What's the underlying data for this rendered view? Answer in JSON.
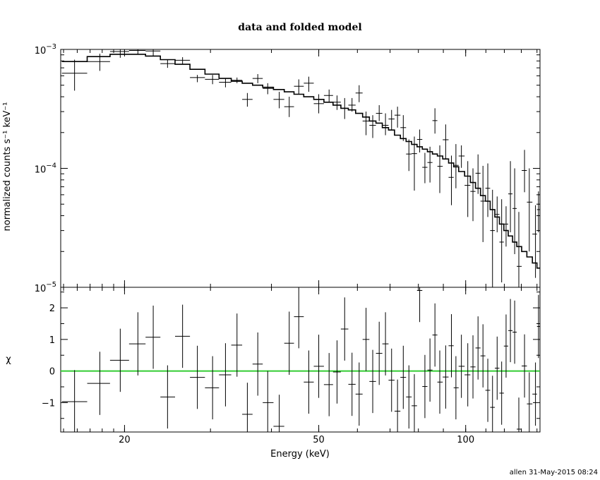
{
  "chart_data": {
    "title": "data and folded model",
    "footer": "allen  31-May-2015 08:24",
    "xlabel": "Energy (keV)",
    "x_scale": "log",
    "xlim": [
      14.8,
      142
    ],
    "x_ticks": [
      {
        "value": 20,
        "label": "20"
      },
      {
        "value": 50,
        "label": "50"
      },
      {
        "value": 100,
        "label": "100"
      }
    ],
    "panels": [
      {
        "id": "top",
        "type": "scatter",
        "ylabel": "normalized counts s⁻¹ keV⁻¹",
        "y_scale": "log",
        "ylim": [
          1e-05,
          0.001
        ],
        "y_ticks": [
          {
            "value": 0.001,
            "base": "10",
            "exp": "−3"
          },
          {
            "value": 0.0001,
            "base": "10",
            "exp": "−4"
          },
          {
            "value": 1e-05,
            "base": "10",
            "exp": "−5"
          }
        ],
        "data": {
          "name": "data",
          "points": [
            [
              15.8,
              0.00063,
              0.00082,
              0.00045
            ],
            [
              17.8,
              0.00079,
              0.00092,
              0.00066
            ],
            [
              19.6,
              0.00096,
              0.00102,
              0.00085
            ],
            [
              21.3,
              0.00098,
              0.00103,
              0.00091
            ],
            [
              22.9,
              0.00097,
              0.00102,
              0.00088
            ],
            [
              24.5,
              0.00076,
              0.00082,
              0.0007
            ],
            [
              26.3,
              0.00081,
              0.00086,
              0.00075
            ],
            [
              28.2,
              0.00058,
              0.00061,
              0.00053
            ],
            [
              30.3,
              0.00056,
              0.00061,
              0.00051
            ],
            [
              32.2,
              0.00053,
              0.00057,
              0.00048
            ],
            [
              34.0,
              0.00055,
              0.00058,
              0.00052
            ],
            [
              35.7,
              0.00038,
              0.00043,
              0.00033
            ],
            [
              37.5,
              0.00057,
              0.00062,
              0.00052
            ],
            [
              39.3,
              0.00047,
              0.00052,
              0.00042
            ],
            [
              41.5,
              0.00038,
              0.00044,
              0.00032
            ],
            [
              43.5,
              0.00033,
              0.0004,
              0.00027
            ],
            [
              45.5,
              0.00049,
              0.00056,
              0.00042
            ],
            [
              47.7,
              0.00052,
              0.00059,
              0.00044
            ],
            [
              50.0,
              0.00035,
              0.00042,
              0.00029
            ],
            [
              52.5,
              0.00041,
              0.00046,
              0.00036
            ],
            [
              54.5,
              0.00036,
              0.00041,
              0.00031
            ],
            [
              56.5,
              0.00032,
              0.00039,
              0.00026
            ],
            [
              58.5,
              0.00034,
              0.00039,
              0.0003
            ],
            [
              60.5,
              0.00043,
              0.0005,
              0.00036
            ],
            [
              62.5,
              0.00025,
              0.0003,
              0.00019
            ],
            [
              64.5,
              0.00023,
              0.00028,
              0.00018
            ],
            [
              66.5,
              0.00029,
              0.00034,
              0.00025
            ],
            [
              68.5,
              0.00023,
              0.00029,
              0.00019
            ],
            [
              70.5,
              0.00026,
              0.00031,
              0.00021
            ],
            [
              72.5,
              0.00028,
              0.00033,
              0.00022
            ],
            [
              74.5,
              0.00022,
              0.00028,
              0.00017
            ],
            [
              76.5,
              0.000132,
              0.000175,
              9.5e-05
            ],
            [
              78.5,
              0.000133,
              0.000185,
              6.5e-05
            ],
            [
              80.5,
              0.000175,
              0.000212,
              0.000136
            ],
            [
              82.5,
              0.000102,
              0.000135,
              7.5e-05
            ],
            [
              84.5,
              0.000112,
              0.000152,
              7.6e-05
            ],
            [
              86.5,
              0.000252,
              0.00032,
              0.000196
            ],
            [
              88.5,
              0.000104,
              0.000156,
              6.2e-05
            ],
            [
              91.0,
              0.000174,
              0.000234,
              0.000121
            ],
            [
              93.5,
              8.4e-05,
              0.000128,
              4.9e-05
            ],
            [
              95.5,
              0.000106,
              0.00016,
              6.8e-05
            ],
            [
              98.0,
              0.000127,
              0.000156,
              0.000101
            ],
            [
              101.0,
              7.2e-05,
              0.000115,
              3.9e-05
            ],
            [
              103.5,
              6.4e-05,
              0.0001,
              3.6e-05
            ],
            [
              106.0,
              9.1e-05,
              0.000131,
              6.1e-05
            ],
            [
              108.5,
              5.3e-05,
              0.000105,
              2.4e-05
            ],
            [
              111.0,
              6.8e-05,
              0.00011,
              3.9e-05
            ],
            [
              113.5,
              3e-05,
              6.6e-05,
              1e-05
            ],
            [
              116.0,
              4.1e-05,
              5.8e-05,
              2.9e-05
            ],
            [
              118.5,
              2.4e-05,
              5.5e-05,
              1.1e-05
            ],
            [
              121.0,
              3.4e-05,
              4.8e-05,
              2.2e-05
            ],
            [
              123.5,
              6.1e-05,
              0.000115,
              2.9e-05
            ],
            [
              126.0,
              4.6e-05,
              0.0001,
              1.9e-05
            ],
            [
              128.5,
              1.5e-05,
              4.3e-05,
              1e-05
            ],
            [
              132.0,
              9.6e-05,
              0.000143,
              6.3e-05
            ],
            [
              135.0,
              5.2e-05,
              0.0001,
              2e-05
            ],
            [
              139.0,
              2.8e-05,
              4.9e-05,
              1.2e-05
            ],
            [
              141.0,
              4.5e-05,
              6.4e-05,
              2.9e-05
            ]
          ]
        },
        "model": {
          "name": "folded model",
          "points": [
            [
              15.8,
              0.00079
            ],
            [
              17.8,
              0.00087
            ],
            [
              19.6,
              0.00091
            ],
            [
              21.3,
              0.00091
            ],
            [
              22.9,
              0.00088
            ],
            [
              24.5,
              0.00082
            ],
            [
              26.3,
              0.00075
            ],
            [
              28.2,
              0.00068
            ],
            [
              30.3,
              0.00062
            ],
            [
              32.2,
              0.00057
            ],
            [
              34.0,
              0.00054
            ],
            [
              35.7,
              0.00052
            ],
            [
              37.5,
              0.0005
            ],
            [
              39.3,
              0.00048
            ],
            [
              41.5,
              0.00046
            ],
            [
              43.5,
              0.00044
            ],
            [
              45.5,
              0.00042
            ],
            [
              47.7,
              0.0004
            ],
            [
              50.0,
              0.00038
            ],
            [
              52.5,
              0.00036
            ],
            [
              54.5,
              0.00034
            ],
            [
              56.5,
              0.00032
            ],
            [
              58.5,
              0.00031
            ],
            [
              60.5,
              0.00029
            ],
            [
              62.5,
              0.00027
            ],
            [
              64.5,
              0.00025
            ],
            [
              66.5,
              0.00024
            ],
            [
              68.5,
              0.00022
            ],
            [
              70.5,
              0.00021
            ],
            [
              72.5,
              0.00019
            ],
            [
              74.5,
              0.000178
            ],
            [
              76.5,
              0.000168
            ],
            [
              78.5,
              0.000159
            ],
            [
              80.5,
              0.000152
            ],
            [
              82.5,
              0.000145
            ],
            [
              84.5,
              0.000138
            ],
            [
              86.5,
              0.000132
            ],
            [
              88.5,
              0.000127
            ],
            [
              91.0,
              0.00012
            ],
            [
              93.5,
              0.000111
            ],
            [
              95.5,
              0.000103
            ],
            [
              98.0,
              9.4e-05
            ],
            [
              101.0,
              8.6e-05
            ],
            [
              103.5,
              7.6e-05
            ],
            [
              106.0,
              6.8e-05
            ],
            [
              108.5,
              5.9e-05
            ],
            [
              111.0,
              5.3e-05
            ],
            [
              113.5,
              4.5e-05
            ],
            [
              116.0,
              3.9e-05
            ],
            [
              118.5,
              3.4e-05
            ],
            [
              121.0,
              3e-05
            ],
            [
              123.5,
              2.7e-05
            ],
            [
              126.0,
              2.4e-05
            ],
            [
              128.5,
              2.2e-05
            ],
            [
              132.0,
              2e-05
            ],
            [
              135.0,
              1.8e-05
            ],
            [
              139.0,
              1.6e-05
            ],
            [
              141.0,
              1.45e-05
            ]
          ]
        }
      },
      {
        "id": "bottom",
        "type": "scatter",
        "ylabel": "χ",
        "y_scale": "linear",
        "ylim": [
          -1.93,
          2.65
        ],
        "y_ticks": [
          {
            "value": -1,
            "label": "−1"
          },
          {
            "value": 0,
            "label": "0"
          },
          {
            "value": 1,
            "label": "1"
          },
          {
            "value": 2,
            "label": "2"
          }
        ],
        "reference_line": {
          "y": 0,
          "color": "#33cc33"
        },
        "points": [
          [
            15.8,
            -0.97
          ],
          [
            17.8,
            -0.39
          ],
          [
            19.6,
            0.34
          ],
          [
            21.3,
            0.86
          ],
          [
            22.9,
            1.07
          ],
          [
            24.5,
            -0.82
          ],
          [
            26.3,
            1.1
          ],
          [
            28.2,
            -0.2
          ],
          [
            30.3,
            -0.53
          ],
          [
            32.2,
            -0.12
          ],
          [
            34.0,
            0.82
          ],
          [
            35.7,
            -1.37
          ],
          [
            37.5,
            0.22
          ],
          [
            39.3,
            -1.0
          ],
          [
            41.5,
            -1.75
          ],
          [
            43.5,
            0.88
          ],
          [
            45.5,
            1.72
          ],
          [
            47.7,
            -0.35
          ],
          [
            50.0,
            0.15
          ],
          [
            52.5,
            -0.43
          ],
          [
            54.5,
            -0.03
          ],
          [
            56.5,
            1.33
          ],
          [
            58.5,
            -0.42
          ],
          [
            60.5,
            -0.73
          ],
          [
            62.5,
            1.0
          ],
          [
            64.5,
            -0.33
          ],
          [
            66.5,
            0.56
          ],
          [
            68.5,
            0.86
          ],
          [
            70.5,
            -0.29
          ],
          [
            72.5,
            -1.27
          ],
          [
            74.5,
            -0.2
          ],
          [
            76.5,
            -0.82
          ],
          [
            78.5,
            -1.1
          ],
          [
            80.5,
            2.55
          ],
          [
            82.5,
            -0.49
          ],
          [
            84.5,
            0.03
          ],
          [
            86.5,
            1.14
          ],
          [
            88.5,
            -0.35
          ],
          [
            91.0,
            -0.19
          ],
          [
            93.5,
            0.8
          ],
          [
            95.5,
            -0.53
          ],
          [
            98.0,
            0.15
          ],
          [
            101.0,
            -0.12
          ],
          [
            103.5,
            0.13
          ],
          [
            106.0,
            0.73
          ],
          [
            108.5,
            0.48
          ],
          [
            111.0,
            -0.61
          ],
          [
            113.5,
            -1.15
          ],
          [
            116.0,
            0.09
          ],
          [
            118.5,
            -0.7
          ],
          [
            121.0,
            0.79
          ],
          [
            123.5,
            1.28
          ],
          [
            126.0,
            1.23
          ],
          [
            128.5,
            -1.84
          ],
          [
            132.0,
            0.16
          ],
          [
            135.0,
            -1.04
          ],
          [
            139.0,
            -0.73
          ],
          [
            141.0,
            1.41
          ]
        ]
      }
    ]
  }
}
